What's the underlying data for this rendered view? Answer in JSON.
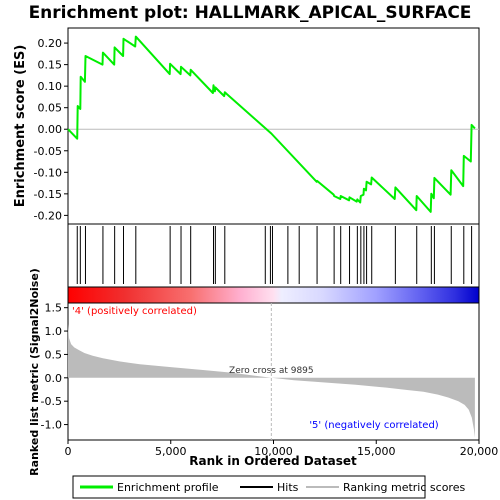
{
  "chart_data": {
    "type": "line",
    "title": "Enrichment plot: HALLMARK_APICAL_SURFACE",
    "es_panel": {
      "ylabel": "Enrichment score (ES)",
      "ylim": [
        -0.22,
        0.235
      ],
      "yticks": [
        -0.2,
        -0.15,
        -0.1,
        -0.05,
        0.0,
        0.05,
        0.1,
        0.15,
        0.2
      ],
      "ytick_labels": [
        "-0.20",
        "-0.15",
        "-0.10",
        "-0.05",
        "0.00",
        "0.05",
        "0.10",
        "0.15",
        "0.20"
      ],
      "series": [
        {
          "name": "Enrichment profile",
          "color": "#00ee00",
          "x": [
            0,
            450,
            470,
            600,
            620,
            820,
            850,
            1680,
            1700,
            2250,
            2270,
            2680,
            2700,
            3270,
            3300,
            4950,
            4970,
            5480,
            5500,
            5950,
            5970,
            7050,
            7080,
            7150,
            7170,
            7600,
            7630,
            7720,
            9895,
            12100,
            12120,
            12930,
            12950,
            13250,
            13270,
            13680,
            13700,
            14050,
            14080,
            14220,
            14250,
            14380,
            14400,
            14500,
            14530,
            14750,
            14780,
            15900,
            15930,
            16950,
            16970,
            17650,
            17680,
            17800,
            17830,
            18620,
            18650,
            19230,
            19260,
            19600,
            19640,
            19800
          ],
          "y": [
            0.0,
            -0.022,
            0.054,
            0.047,
            0.122,
            0.11,
            0.17,
            0.15,
            0.178,
            0.15,
            0.19,
            0.17,
            0.21,
            0.192,
            0.215,
            0.128,
            0.152,
            0.128,
            0.145,
            0.125,
            0.138,
            0.084,
            0.102,
            0.088,
            0.097,
            0.077,
            0.086,
            0.082,
            -0.01,
            -0.122,
            -0.12,
            -0.152,
            -0.155,
            -0.162,
            -0.155,
            -0.165,
            -0.158,
            -0.168,
            -0.163,
            -0.17,
            -0.155,
            -0.152,
            -0.138,
            -0.142,
            -0.122,
            -0.128,
            -0.112,
            -0.162,
            -0.135,
            -0.188,
            -0.155,
            -0.192,
            -0.15,
            -0.16,
            -0.113,
            -0.152,
            -0.095,
            -0.132,
            -0.062,
            -0.075,
            0.01,
            0.002
          ]
        }
      ]
    },
    "hits_panel": {
      "series_name": "Hits",
      "hits_x": [
        450,
        600,
        850,
        1700,
        2270,
        2700,
        3300,
        4970,
        5500,
        5970,
        7080,
        7170,
        7630,
        9600,
        9850,
        9950,
        10700,
        11250,
        12120,
        12950,
        13270,
        13700,
        14080,
        14250,
        14400,
        14530,
        14780,
        15930,
        16970,
        17680,
        17830,
        18650,
        19260,
        19640
      ]
    },
    "metric_panel": {
      "ylabel": "Ranked list metric (Signal2Noise)",
      "series_name": "Ranking metric scores",
      "ylim": [
        -1.33,
        1.6
      ],
      "yticks": [
        -1.0,
        -0.5,
        0.0,
        0.5,
        1.0,
        1.5
      ],
      "ytick_labels": [
        "-1.0",
        "-0.5",
        "0.0",
        "0.5",
        "1.0",
        "1.5"
      ],
      "x": [
        0,
        50,
        150,
        300,
        500,
        800,
        1200,
        1700,
        2500,
        3500,
        5000,
        6500,
        8000,
        9000,
        9895,
        11000,
        12500,
        14000,
        15500,
        16500,
        17300,
        18000,
        18500,
        19000,
        19300,
        19500,
        19650,
        19750,
        19800
      ],
      "y": [
        1.15,
        0.85,
        0.72,
        0.65,
        0.6,
        0.53,
        0.47,
        0.42,
        0.35,
        0.29,
        0.23,
        0.17,
        0.11,
        0.05,
        0.0,
        -0.05,
        -0.1,
        -0.15,
        -0.21,
        -0.26,
        -0.3,
        -0.36,
        -0.42,
        -0.5,
        -0.58,
        -0.68,
        -0.85,
        -1.1,
        -1.28
      ],
      "zero_cross_label": "Zero cross at 9895",
      "zero_cross_x": 9895,
      "pos_label": "'4' (positively correlated)",
      "neg_label": "'5' (negatively correlated)",
      "pos_color": "#ff0000",
      "neg_color": "#0000ff"
    },
    "xaxis": {
      "xlabel": "Rank in Ordered Dataset",
      "xlim": [
        0,
        20000
      ],
      "xticks": [
        0,
        5000,
        10000,
        15000,
        20000
      ],
      "xtick_labels": [
        "0",
        "5,000",
        "10,000",
        "15,000",
        "20,000"
      ]
    },
    "legend": {
      "placement": "bottom",
      "entries": [
        {
          "label": "Enrichment profile",
          "color": "#00ee00"
        },
        {
          "label": "Hits",
          "color": "#000000"
        },
        {
          "label": "Ranking metric scores",
          "color": "#bbbbbb"
        }
      ]
    },
    "colors": {
      "profile": "#00ee00",
      "hits": "#000000",
      "metric_fill": "#bbbbbb",
      "zero_line": "#cccccc"
    }
  }
}
